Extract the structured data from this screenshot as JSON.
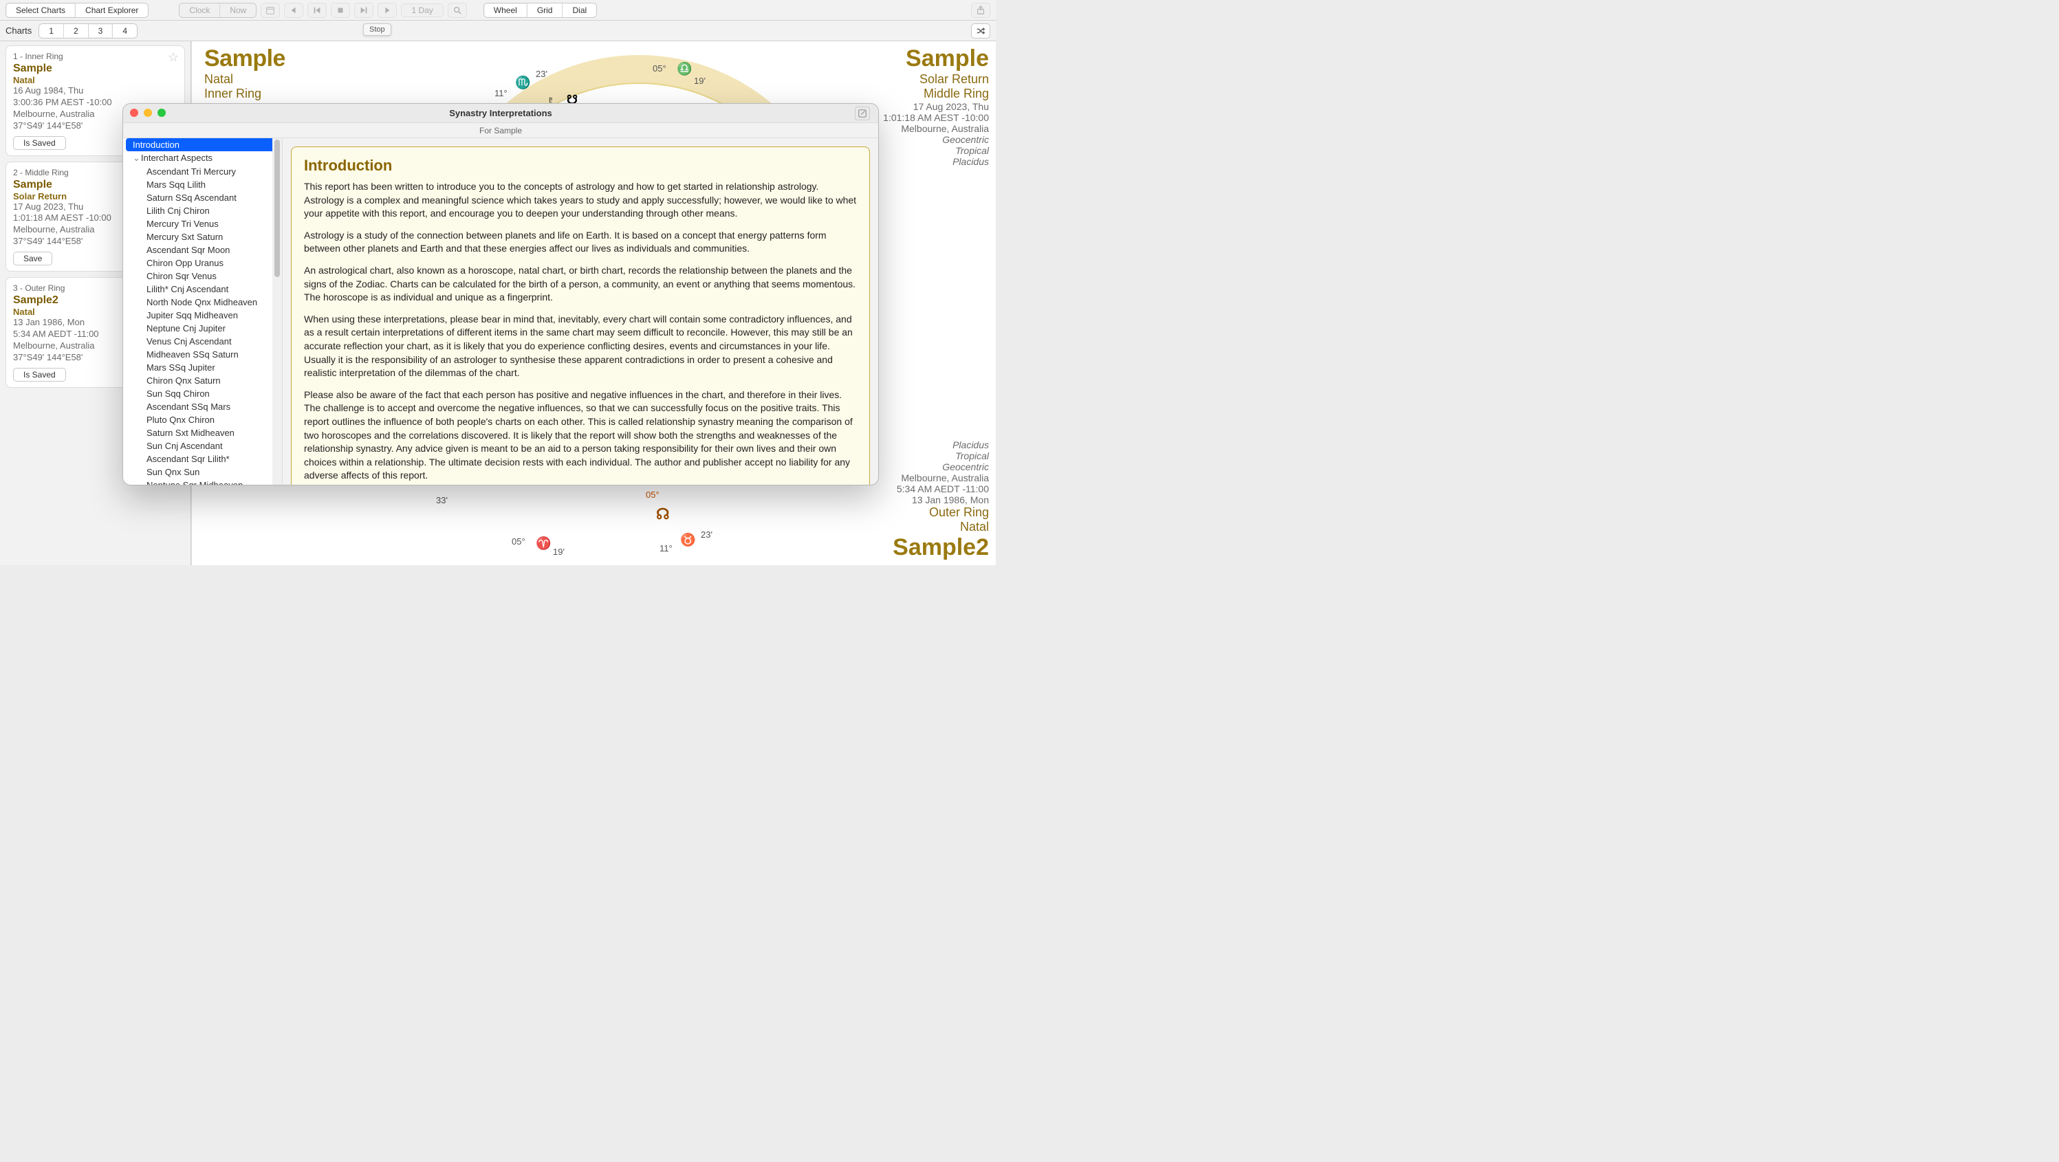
{
  "colors": {
    "accent": "#9a7a10",
    "wheel_ring": "#f3e5b8",
    "selection": "#0a60ff"
  },
  "toolbar": {
    "mode": {
      "select_charts": "Select Charts",
      "chart_explorer": "Chart Explorer"
    },
    "time": {
      "clock": "Clock",
      "now": "Now",
      "step": "1 Day"
    },
    "view": {
      "wheel": "Wheel",
      "grid": "Grid",
      "dial": "Dial"
    },
    "stop_tooltip": "Stop"
  },
  "chartsbar": {
    "label": "Charts",
    "slots": [
      "1",
      "2",
      "3",
      "4"
    ]
  },
  "rings": [
    {
      "num": "1 - Inner Ring",
      "title": "Sample",
      "type": "Natal",
      "date": "16 Aug 1984, Thu",
      "time": "3:00:36 PM AEST -10:00",
      "place": "Melbourne, Australia",
      "coord": "37°S49' 144°E58'",
      "save": "Is Saved"
    },
    {
      "num": "2 - Middle Ring",
      "title": "Sample",
      "type": "Solar Return",
      "date": "17 Aug 2023, Thu",
      "time": "1:01:18 AM AEST -10:00",
      "place": "Melbourne, Australia",
      "coord": "37°S49' 144°E58'",
      "save": "Save"
    },
    {
      "num": "3 - Outer Ring",
      "title": "Sample2",
      "type": "Natal",
      "date": "13 Jan 1986, Mon",
      "time": "5:34 AM AEDT -11:00",
      "place": "Melbourne, Australia",
      "coord": "37°S49' 144°E58'",
      "save": "Is Saved"
    }
  ],
  "chart_left": {
    "title": "Sample",
    "type": "Natal",
    "ring": "Inner Ring",
    "date": "16 Aug 1984, Thu"
  },
  "chart_right_top": {
    "title": "Sample",
    "type": "Solar Return",
    "ring": "Middle Ring",
    "date": "17 Aug 2023, Thu",
    "time": "1:01:18 AM AEST -10:00",
    "place": "Melbourne, Australia",
    "sys1": "Geocentric",
    "sys2": "Tropical",
    "sys3": "Placidus"
  },
  "chart_right_bottom": {
    "sys3": "Placidus",
    "sys2": "Tropical",
    "sys1": "Geocentric",
    "place": "Melbourne, Australia",
    "time": "5:34 AM AEDT -11:00",
    "date": "13 Jan 1986, Mon",
    "ring": "Outer Ring",
    "type": "Natal",
    "title": "Sample2"
  },
  "wheel_glyphs": {
    "g1": {
      "sym": "♏",
      "color": "#0040c0",
      "deg1": "11°",
      "deg2": "23'"
    },
    "g2": {
      "sym": "♎",
      "color": "#c79a00",
      "deg1": "05°",
      "deg2": "19'"
    },
    "g3": {
      "sym": "♈",
      "color": "#cc0000",
      "deg1": "05°",
      "deg2": "19'"
    },
    "g4": {
      "sym": "♉",
      "color": "#2a9a00",
      "deg1": "11°",
      "deg2": "23'"
    },
    "g5": {
      "sym": "33'"
    },
    "g6": {
      "sym": "05°",
      "color": "#cc5500"
    },
    "g7": {
      "sym": "☊",
      "color": "#a05000"
    },
    "g8": {
      "sym": "☋",
      "color": "#000"
    },
    "g9": {
      "sym": "♇",
      "color": "#000"
    }
  },
  "synastry": {
    "title": "Synastry Interpretations",
    "subtitle": "For Sample",
    "tree": {
      "intro": "Introduction",
      "group1": "Interchart Aspects",
      "items": [
        "Ascendant Tri Mercury",
        "Mars Sqq Lilith",
        "Saturn SSq Ascendant",
        "Lilith Cnj Chiron",
        "Mercury Tri Venus",
        "Mercury Sxt Saturn",
        "Ascendant Sqr Moon",
        "Chiron Opp Uranus",
        "Chiron Sqr Venus",
        "Lilith* Cnj Ascendant",
        "North Node Qnx Midheaven",
        "Jupiter Sqq Midheaven",
        "Neptune Cnj Jupiter",
        "Venus Cnj Ascendant",
        "Midheaven SSq Saturn",
        "Mars SSq Jupiter",
        "Chiron Qnx Saturn",
        "Sun Sqq Chiron",
        "Ascendant SSq Mars",
        "Pluto Qnx Chiron",
        "Saturn Sxt Midheaven",
        "Sun Cnj Ascendant",
        "Ascendant Sqr Lilith*",
        "Sun Qnx Sun",
        "Neptune Sqr Midheaven"
      ]
    },
    "intro": {
      "heading": "Introduction",
      "p1": "This report has been written to introduce you to the concepts of astrology and how to get started in relationship astrology. Astrology is a complex and meaningful science which takes years to study and apply successfully; however, we would like to whet your appetite with this report, and encourage you to deepen your understanding through other means.",
      "p2": "Astrology is a study of the connection between planets and life on Earth. It is based on a concept that energy patterns form between other planets and Earth and that these energies affect our lives as individuals and communities.",
      "p3": "An astrological chart, also known as a horoscope, natal chart, or birth chart, records the relationship between the planets and the signs of the Zodiac. Charts can be calculated for the birth of a person, a community, an event or anything that seems momentous. The horoscope is as individual and unique as a fingerprint.",
      "p4": "When using these interpretations, please bear in mind that, inevitably, every chart will contain some contradictory influences, and as a result certain interpretations of different items in the same chart may seem difficult to reconcile. However, this may still be an accurate reflection your chart, as it is likely that you do experience conflicting desires, events and circumstances in your life. Usually it is the responsibility of an astrologer to synthesise these apparent contradictions in order to present a cohesive and realistic interpretation of the dilemmas of the chart.",
      "p5": "Please also be aware of the fact that each person has positive and negative influences in the chart, and therefore in their lives. The challenge is to accept and overcome the negative influences, so that we can successfully focus on the positive traits. This report outlines the influence of both people's charts on each other. This is called relationship synastry meaning the comparison of two horoscopes and the correlations discovered. It is likely that the report will show both the strengths and weaknesses of the relationship synastry. Any advice given is meant to be an aid to a person taking responsibility for their own lives and their own choices within a relationship. The ultimate decision rests with each individual. The author and publisher accept no liability for any adverse affects of this report."
    }
  }
}
